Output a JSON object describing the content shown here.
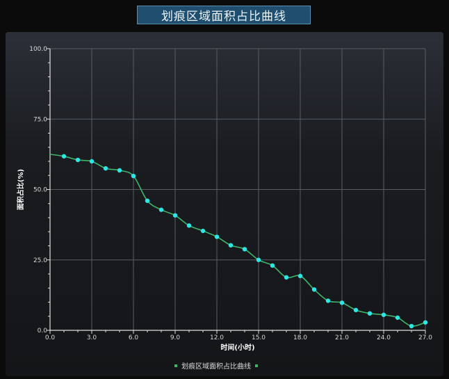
{
  "header": {
    "title": "划痕区域面积占比曲线"
  },
  "chart_data": {
    "type": "line",
    "title": "划痕区域面积占比曲线",
    "xlabel": "时间(小时)",
    "ylabel": "面积占比(%)",
    "xlim": [
      0,
      27
    ],
    "ylim": [
      0,
      100
    ],
    "x_ticks": [
      "0.0",
      "3.0",
      "6.0",
      "9.0",
      "12.0",
      "15.0",
      "18.0",
      "21.0",
      "24.0",
      "27.0"
    ],
    "y_ticks": [
      "0.0",
      "25.0",
      "50.0",
      "75.0",
      "100.0"
    ],
    "grid": true,
    "legend_position": "bottom-center",
    "series": [
      {
        "name": "划痕区域面积占比曲线",
        "color": "#3fb56a",
        "marker_color": "#2ee6e6",
        "x": [
          0,
          1,
          2,
          3,
          4,
          5,
          6,
          7,
          8,
          9,
          10,
          11,
          12,
          13,
          14,
          15,
          16,
          17,
          18,
          19,
          20,
          21,
          22,
          23,
          24,
          25,
          26,
          27
        ],
        "y": [
          62.5,
          61.8,
          60.5,
          60,
          57.5,
          56.8,
          54.8,
          46,
          42.8,
          40.8,
          37.2,
          35.3,
          33.2,
          30.2,
          28.8,
          25,
          23,
          18.8,
          19.3,
          14.5,
          10.5,
          9.8,
          7.2,
          6,
          5.5,
          4.5,
          1.5,
          2.8
        ]
      }
    ]
  }
}
